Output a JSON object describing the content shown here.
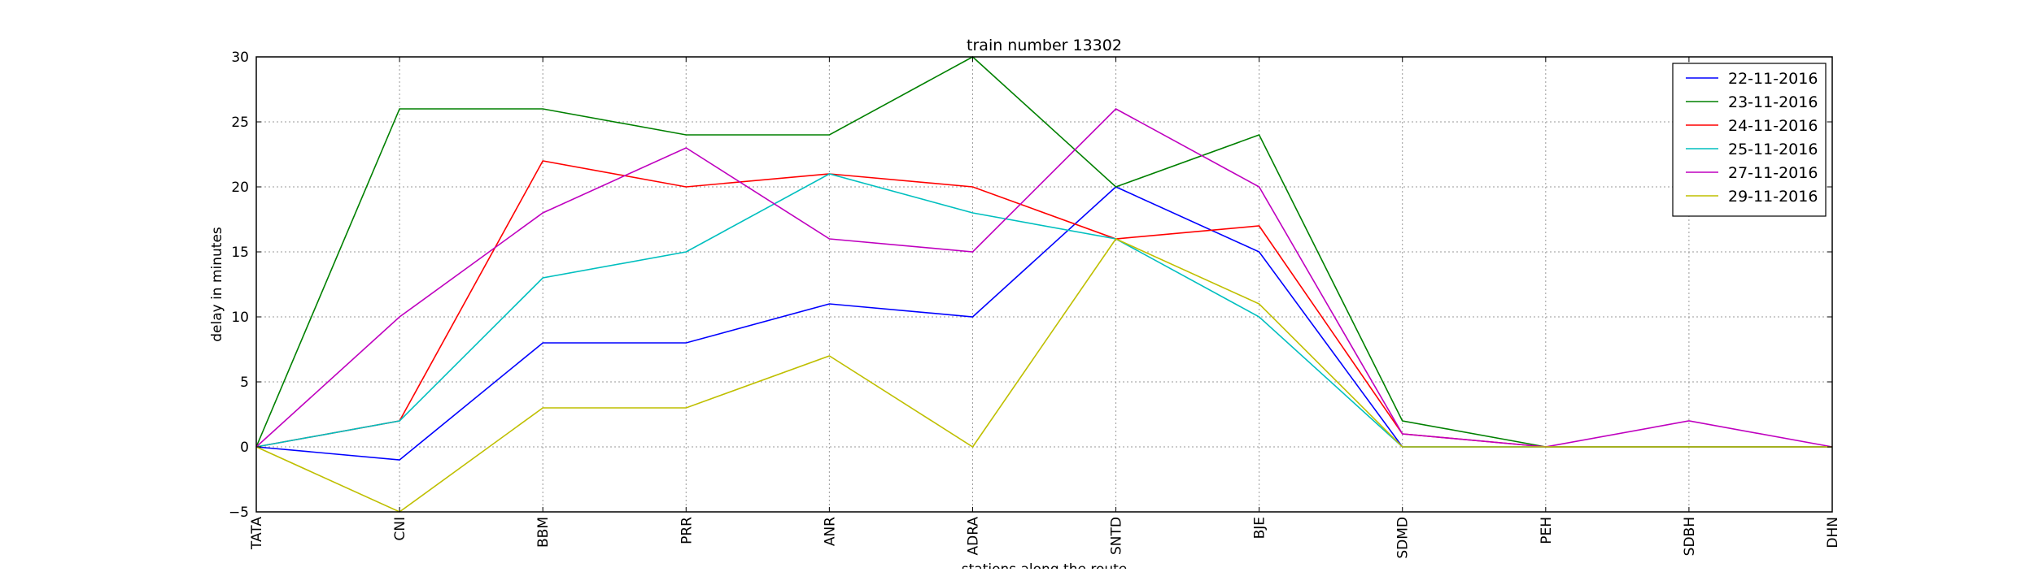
{
  "chart_data": {
    "type": "line",
    "title": "train number 13302",
    "xlabel": "stations along the route",
    "ylabel": "delay in minutes",
    "categories": [
      "TATA",
      "CNI",
      "BBM",
      "PRR",
      "ANR",
      "ADRA",
      "SNTD",
      "BJE",
      "SDMD",
      "PEH",
      "SDBH",
      "DHN"
    ],
    "ylim": [
      -5,
      30
    ],
    "yticks": [
      -5,
      0,
      5,
      10,
      15,
      20,
      25,
      30
    ],
    "grid": true,
    "legend_position": "top-right",
    "series": [
      {
        "name": "22-11-2016",
        "color": "#0000ff",
        "values": [
          0,
          -1,
          8,
          8,
          11,
          10,
          20,
          15,
          0,
          0,
          0,
          0
        ]
      },
      {
        "name": "23-11-2016",
        "color": "#008000",
        "values": [
          0,
          26,
          26,
          24,
          24,
          30,
          20,
          24,
          2,
          0,
          0,
          0
        ]
      },
      {
        "name": "24-11-2016",
        "color": "#ff0000",
        "values": [
          0,
          2,
          22,
          20,
          21,
          20,
          16,
          17,
          1,
          0,
          0,
          0
        ]
      },
      {
        "name": "25-11-2016",
        "color": "#00bfbf",
        "values": [
          0,
          2,
          13,
          15,
          21,
          18,
          16,
          10,
          0,
          0,
          0,
          0
        ]
      },
      {
        "name": "27-11-2016",
        "color": "#bf00bf",
        "values": [
          0,
          10,
          18,
          23,
          16,
          15,
          26,
          20,
          1,
          0,
          2,
          0
        ]
      },
      {
        "name": "29-11-2016",
        "color": "#bfbf00",
        "values": [
          0,
          -5,
          3,
          3,
          7,
          0,
          16,
          11,
          0,
          0,
          0,
          0
        ]
      }
    ]
  }
}
